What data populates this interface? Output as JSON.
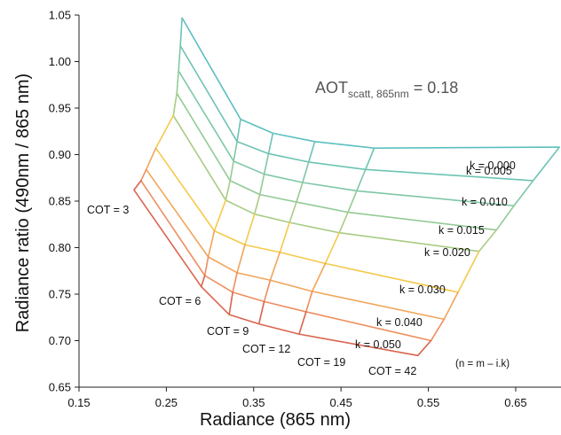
{
  "chart_data": {
    "type": "line",
    "xlabel": "Radiance (865 nm)",
    "ylabel": "Radiance ratio (490nm / 865 nm)",
    "xlim": [
      0.15,
      0.71
    ],
    "ylim": [
      0.65,
      1.05
    ],
    "x_ticks": [
      "0.15",
      "0.25",
      "0.35",
      "0.45",
      "0.55",
      "0.65"
    ],
    "y_ticks": [
      "0.65",
      "0.70",
      "0.75",
      "0.80",
      "0.85",
      "0.90",
      "0.95",
      "1.00",
      "1.05"
    ],
    "grid": false,
    "annotation": {
      "main": "AOT",
      "sub": "scatt, 865nm",
      "tail": " = 0.18"
    },
    "note": "(n = m – i.k)",
    "cot_values": [
      "3",
      "6",
      "9",
      "12",
      "19",
      "42"
    ],
    "cot_labels": [
      "COT = 3",
      "COT = 6",
      "COT = 9",
      "COT = 12",
      "COT = 19",
      "COT = 42"
    ],
    "series": [
      {
        "name": "k = 0.000",
        "color": "#5bbfc0",
        "x": [
          0.268,
          0.335,
          0.372,
          0.42,
          0.488,
          0.7
        ],
        "y": [
          1.047,
          0.938,
          0.923,
          0.914,
          0.907,
          0.908
        ]
      },
      {
        "name": "k = 0.005",
        "color": "#6cc3b4",
        "x": [
          0.266,
          0.331,
          0.367,
          0.413,
          0.478,
          0.67
        ],
        "y": [
          1.017,
          0.914,
          0.901,
          0.892,
          0.884,
          0.872
        ]
      },
      {
        "name": "k = 0.010",
        "color": "#7fc7a6",
        "x": [
          0.264,
          0.327,
          0.362,
          0.406,
          0.468,
          0.648
        ],
        "y": [
          0.99,
          0.893,
          0.879,
          0.87,
          0.861,
          0.845
        ]
      },
      {
        "name": "k = 0.015",
        "color": "#93cb96",
        "x": [
          0.262,
          0.323,
          0.357,
          0.399,
          0.458,
          0.628
        ],
        "y": [
          0.966,
          0.872,
          0.857,
          0.849,
          0.838,
          0.819
        ]
      },
      {
        "name": "k = 0.020",
        "color": "#a8cc84",
        "x": [
          0.258,
          0.318,
          0.351,
          0.391,
          0.448,
          0.608
        ],
        "y": [
          0.942,
          0.851,
          0.836,
          0.827,
          0.816,
          0.796
        ]
      },
      {
        "name": "k = 0.030",
        "color": "#f5c94a",
        "x": [
          0.238,
          0.305,
          0.34,
          0.38,
          0.432,
          0.584
        ],
        "y": [
          0.907,
          0.818,
          0.803,
          0.795,
          0.783,
          0.752
        ]
      },
      {
        "name": "k = 0.040",
        "color": "#f1a55a",
        "x": [
          0.227,
          0.298,
          0.331,
          0.369,
          0.417,
          0.568
        ],
        "y": [
          0.884,
          0.79,
          0.773,
          0.765,
          0.753,
          0.723
        ]
      },
      {
        "name": "k = 0.050",
        "color": "#ee8e5e",
        "x": [
          0.221,
          0.294,
          0.326,
          0.362,
          0.41,
          0.553
        ],
        "y": [
          0.872,
          0.77,
          0.752,
          0.742,
          0.731,
          0.7
        ]
      },
      {
        "name": "",
        "color": "#d9644f",
        "x": [
          0.213,
          0.29,
          0.322,
          0.356,
          0.402,
          0.538
        ],
        "y": [
          0.862,
          0.758,
          0.728,
          0.718,
          0.707,
          0.684
        ]
      }
    ]
  }
}
